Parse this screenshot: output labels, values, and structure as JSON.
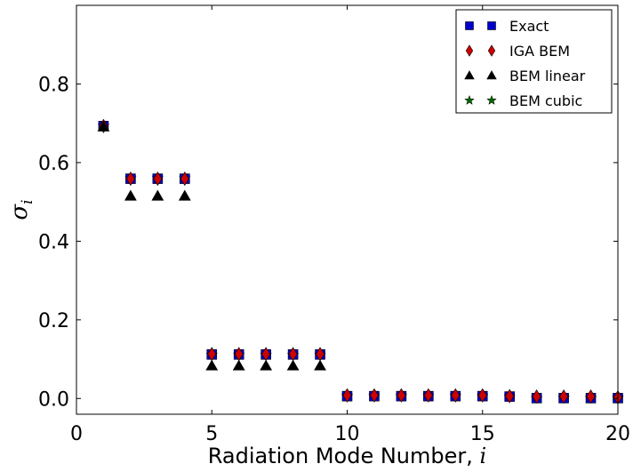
{
  "chart_data": {
    "type": "scatter",
    "title": "",
    "x_axis": {
      "label_text": "Radiation Mode Number, ",
      "label_math": "i",
      "range": [
        0,
        20
      ],
      "ticks": [
        {
          "value": 0,
          "label": "0"
        },
        {
          "value": 5,
          "label": "5"
        },
        {
          "value": 10,
          "label": "10"
        },
        {
          "value": 15,
          "label": "15"
        },
        {
          "value": 20,
          "label": "20"
        }
      ]
    },
    "y_axis": {
      "label_math": "σ",
      "label_sub": "i",
      "range": [
        -0.04,
        1.0
      ],
      "ticks": [
        {
          "value": 0.0,
          "label": "0.0"
        },
        {
          "value": 0.2,
          "label": "0.2"
        },
        {
          "value": 0.4,
          "label": "0.4"
        },
        {
          "value": 0.6,
          "label": "0.6"
        },
        {
          "value": 0.8,
          "label": "0.8"
        }
      ]
    },
    "grid": false,
    "legend_position": "top-right",
    "series": [
      {
        "name": "Exact",
        "marker": "square",
        "color": "#0000cc",
        "x": [
          1,
          2,
          3,
          4,
          5,
          6,
          7,
          8,
          9,
          10,
          11,
          12,
          13,
          14,
          15,
          16,
          17,
          18,
          19,
          20
        ],
        "y": [
          0.693,
          0.559,
          0.559,
          0.559,
          0.112,
          0.112,
          0.112,
          0.112,
          0.112,
          0.006,
          0.006,
          0.006,
          0.006,
          0.006,
          0.006,
          0.005,
          0.001,
          0.001,
          0.001,
          0.001
        ]
      },
      {
        "name": "IGA BEM",
        "marker": "diamond",
        "color": "#cc0000",
        "x": [
          1,
          2,
          3,
          4,
          5,
          6,
          7,
          8,
          9,
          10,
          11,
          12,
          13,
          14,
          15,
          16,
          17,
          18,
          19,
          20
        ],
        "y": [
          0.693,
          0.559,
          0.559,
          0.559,
          0.113,
          0.113,
          0.113,
          0.113,
          0.113,
          0.008,
          0.008,
          0.008,
          0.008,
          0.008,
          0.008,
          0.006,
          0.005,
          0.005,
          0.005,
          0.003
        ]
      },
      {
        "name": "BEM linear",
        "marker": "triangle",
        "color": "#000000",
        "x": [
          1,
          2,
          3,
          4,
          5,
          6,
          7,
          8,
          9
        ],
        "y": [
          0.691,
          0.515,
          0.515,
          0.515,
          0.083,
          0.083,
          0.083,
          0.083,
          0.083
        ]
      },
      {
        "name": "BEM cubic",
        "marker": "star",
        "color": "#006600",
        "x": [
          1,
          2,
          3,
          4,
          5,
          6,
          7,
          8,
          9,
          10,
          11,
          12,
          13,
          14,
          15,
          16,
          17,
          18,
          19,
          20
        ],
        "y": [
          0.693,
          0.561,
          0.561,
          0.561,
          0.111,
          0.111,
          0.111,
          0.111,
          0.111,
          0.006,
          0.006,
          0.006,
          0.006,
          0.006,
          0.006,
          0.005,
          0.001,
          0.001,
          0.001,
          0.001
        ]
      }
    ]
  }
}
